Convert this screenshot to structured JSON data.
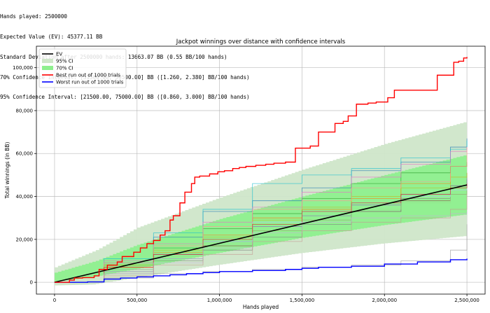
{
  "console": {
    "lines": [
      "Hands played: 2500000",
      "Expected Value (EV): 45377.11 BB",
      "Standard Deviation after 2500000 hands: 13663.07 BB (0.55 BB/100 hands)",
      "70% Confidence Interval: [31500.00, 59500.00] BB ([1.260, 2.380] BB/100 hands)",
      "95% Confidence Interval: [21500.00, 75000.00] BB ([0.860, 3.000] BB/100 hands)"
    ]
  },
  "chart_data": {
    "type": "line",
    "title": "Jackpot winnings over distance with confidence intervals",
    "xlabel": "Hands played",
    "ylabel": "Total winnings (in BB)",
    "xlim": [
      -110000,
      2610000
    ],
    "ylim": [
      -5500,
      110000
    ],
    "xticks": [
      0,
      500000,
      1000000,
      1500000,
      2000000,
      2500000
    ],
    "xtick_labels": [
      "0",
      "500,000",
      "1,000,000",
      "1,500,000",
      "2,000,000",
      "2,500,000"
    ],
    "yticks": [
      0,
      20000,
      40000,
      60000,
      80000,
      100000
    ],
    "ytick_labels": [
      "0",
      "20,000",
      "40,000",
      "60,000",
      "80,000",
      "100,000"
    ],
    "grid": true,
    "legend_position": "top-left",
    "legend": [
      {
        "label": "EV",
        "kind": "line",
        "color": "#000000"
      },
      {
        "label": "95% CI",
        "kind": "patch",
        "color": "#cfe6c9"
      },
      {
        "label": "70% CI",
        "kind": "patch",
        "color": "#8ef08e"
      },
      {
        "label": "Best run out of 1000 trials",
        "kind": "line",
        "color": "#ff0000"
      },
      {
        "label": "Worst run out of 1000 trials",
        "kind": "line",
        "color": "#0000ff"
      }
    ],
    "ev": {
      "x": [
        0,
        2500000
      ],
      "y": [
        0,
        45377.11
      ],
      "color": "#000000"
    },
    "ci95": {
      "color": "#cfe6c9",
      "x": [
        0,
        250000,
        500000,
        1000000,
        1500000,
        2000000,
        2500000
      ],
      "lower": [
        -1500,
        -1000,
        2000,
        8000,
        13500,
        18000,
        21500
      ],
      "upper": [
        7000,
        15000,
        25500,
        39500,
        52500,
        64500,
        75000
      ]
    },
    "ci70": {
      "color": "#8ef08e",
      "x": [
        0,
        250000,
        500000,
        1000000,
        1500000,
        2000000,
        2500000
      ],
      "lower": [
        0,
        2500,
        6000,
        13500,
        20500,
        26500,
        31500
      ],
      "upper": [
        4500,
        10000,
        17500,
        29500,
        40000,
        50000,
        59500
      ]
    },
    "best_run": {
      "color": "#ff0000",
      "x": [
        0,
        90000,
        120000,
        170000,
        240000,
        270000,
        320000,
        380000,
        410000,
        480000,
        520000,
        560000,
        600000,
        640000,
        670000,
        700000,
        720000,
        760000,
        790000,
        830000,
        850000,
        880000,
        940000,
        990000,
        1030000,
        1080000,
        1120000,
        1160000,
        1220000,
        1280000,
        1330000,
        1400000,
        1460000,
        1490000,
        1550000,
        1600000,
        1640000,
        1700000,
        1750000,
        1780000,
        1830000,
        1900000,
        1950000,
        2020000,
        2060000,
        2100000,
        2200000,
        2320000,
        2350000,
        2420000,
        2450000,
        2480000,
        2500000
      ],
      "y": [
        0,
        1000,
        2000,
        2200,
        3000,
        6000,
        8000,
        9500,
        12000,
        14000,
        16000,
        18000,
        19500,
        22000,
        24000,
        29000,
        31000,
        37000,
        42000,
        46000,
        49000,
        49500,
        50500,
        51500,
        52000,
        53000,
        53500,
        54000,
        54500,
        55000,
        55500,
        56000,
        62500,
        62500,
        63500,
        70000,
        70000,
        74000,
        75000,
        77500,
        83000,
        83500,
        84000,
        86000,
        89500,
        89500,
        89500,
        96500,
        96500,
        102500,
        103000,
        104500,
        105000
      ]
    },
    "worst_run": {
      "color": "#0000ff",
      "x": [
        0,
        100000,
        200000,
        300000,
        400000,
        500000,
        600000,
        700000,
        800000,
        900000,
        1000000,
        1200000,
        1400000,
        1500000,
        1600000,
        1800000,
        2000000,
        2200000,
        2400000,
        2500000
      ],
      "y": [
        0,
        0,
        200,
        1500,
        2000,
        2500,
        3000,
        3500,
        4000,
        4500,
        5000,
        5500,
        6000,
        6500,
        7000,
        7500,
        8500,
        9500,
        10500,
        11000
      ]
    },
    "sample_runs": [
      {
        "color": "#1f77b4",
        "x": [
          0,
          300000,
          600000,
          900000,
          1200000,
          1500000,
          1800000,
          2100000,
          2400000,
          2500000
        ],
        "y": [
          0,
          9000,
          21000,
          33000,
          38000,
          44000,
          52000,
          56000,
          63000,
          67000
        ]
      },
      {
        "color": "#17becf",
        "x": [
          0,
          300000,
          600000,
          900000,
          1200000,
          1500000,
          1800000,
          2100000,
          2400000,
          2500000
        ],
        "y": [
          0,
          11000,
          23000,
          34000,
          46000,
          50000,
          53000,
          58000,
          62000,
          66000
        ]
      },
      {
        "color": "#ff7f0e",
        "x": [
          0,
          300000,
          600000,
          900000,
          1200000,
          1500000,
          1800000,
          2100000,
          2400000,
          2500000
        ],
        "y": [
          0,
          7000,
          14000,
          22000,
          30000,
          34000,
          39000,
          46000,
          54000,
          55000
        ]
      },
      {
        "color": "#2ca02c",
        "x": [
          0,
          300000,
          600000,
          900000,
          1200000,
          1500000,
          1800000,
          2100000,
          2400000,
          2500000
        ],
        "y": [
          0,
          8000,
          16000,
          25000,
          32000,
          39000,
          46000,
          51000,
          54000,
          56000
        ]
      },
      {
        "color": "#9467bd",
        "x": [
          0,
          300000,
          600000,
          900000,
          1200000,
          1500000,
          1800000,
          2100000,
          2400000,
          2500000
        ],
        "y": [
          0,
          6000,
          13000,
          19000,
          26000,
          31000,
          36000,
          41000,
          45000,
          48000
        ]
      },
      {
        "color": "#8c564b",
        "x": [
          0,
          300000,
          600000,
          900000,
          1200000,
          1500000,
          1800000,
          2100000,
          2400000,
          2500000
        ],
        "y": [
          0,
          5000,
          11000,
          17000,
          24000,
          29000,
          33000,
          38000,
          41000,
          43000
        ]
      },
      {
        "color": "#e377c2",
        "x": [
          0,
          300000,
          600000,
          900000,
          1200000,
          1500000,
          1800000,
          2100000,
          2400000,
          2500000
        ],
        "y": [
          0,
          10000,
          18000,
          28000,
          35000,
          42000,
          49000,
          55000,
          61000,
          63000
        ]
      },
      {
        "color": "#7f7f7f",
        "x": [
          0,
          300000,
          600000,
          900000,
          1200000,
          1500000,
          1800000,
          2100000,
          2400000,
          2500000
        ],
        "y": [
          0,
          4000,
          10000,
          15000,
          21000,
          27000,
          33000,
          39000,
          45000,
          51000
        ]
      },
      {
        "color": "#bcbd22",
        "x": [
          0,
          300000,
          600000,
          900000,
          1200000,
          1500000,
          1800000,
          2100000,
          2400000,
          2500000
        ],
        "y": [
          0,
          8000,
          15000,
          21000,
          29000,
          35000,
          40000,
          44000,
          49000,
          51000
        ]
      },
      {
        "color": "#ff9896",
        "x": [
          0,
          300000,
          600000,
          900000,
          1200000,
          1500000,
          1800000,
          2100000,
          2400000,
          2500000
        ],
        "y": [
          0,
          9000,
          17000,
          26000,
          34000,
          38000,
          44000,
          47000,
          54000,
          63000
        ]
      },
      {
        "color": "#98df8a",
        "x": [
          0,
          300000,
          600000,
          900000,
          1200000,
          1500000,
          1800000,
          2100000,
          2400000,
          2500000
        ],
        "y": [
          0,
          6000,
          12000,
          18000,
          24000,
          29000,
          34000,
          37000,
          41000,
          44000
        ]
      },
      {
        "color": "#aec7e8",
        "x": [
          0,
          300000,
          600000,
          900000,
          1200000,
          1500000,
          1800000,
          2100000,
          2400000,
          2500000
        ],
        "y": [
          0,
          5000,
          11000,
          19000,
          28000,
          33000,
          37000,
          40000,
          43000,
          45000
        ]
      },
      {
        "color": "#d62728",
        "x": [
          0,
          300000,
          600000,
          900000,
          1200000,
          1500000,
          1800000,
          2100000,
          2400000,
          2500000
        ],
        "y": [
          0,
          7000,
          13000,
          20000,
          27000,
          33000,
          37000,
          41000,
          44000,
          46000
        ]
      },
      {
        "color": "#c5b0d5",
        "x": [
          0,
          300000,
          600000,
          900000,
          1200000,
          1500000,
          1800000,
          2100000,
          2400000,
          2500000
        ],
        "y": [
          0,
          4000,
          9000,
          16000,
          23000,
          28000,
          30000,
          31000,
          32000,
          33000
        ]
      },
      {
        "color": "#c49c94",
        "x": [
          0,
          300000,
          600000,
          900000,
          1200000,
          1500000,
          1800000,
          2100000,
          2400000,
          2500000
        ],
        "y": [
          0,
          3000,
          8000,
          13000,
          19000,
          24000,
          28000,
          30000,
          34000,
          41000
        ]
      },
      {
        "color": "#999999",
        "x": [
          0,
          300000,
          600000,
          900000,
          1200000,
          1500000,
          1800000,
          2100000,
          2400000,
          2500000
        ],
        "y": [
          0,
          2000,
          4000,
          5000,
          6000,
          7000,
          8000,
          10000,
          15000,
          27000
        ]
      }
    ]
  }
}
